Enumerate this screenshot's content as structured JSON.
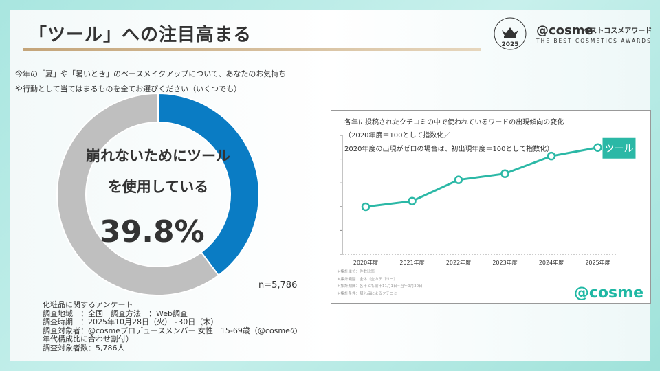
{
  "title": "「ツール」への注目高まる",
  "logo": {
    "brand": "@cosme",
    "brand_jp": "ベストコスメアワード",
    "sub": "THE BEST COSMETICS AWARDS",
    "year": "2025",
    "seal_text": "THE BEST COSMETICS AWARDS"
  },
  "question": "今年の「夏」や「暑いとき」のベースメイクアップについて、あなたのお気持ちや行動として当てはまるものを全てお選びください（いくつでも）",
  "donut": {
    "label_line1": "崩れないためにツール",
    "label_line2": "を使用している",
    "value_text": "39.8%",
    "value": 39.8,
    "colors": {
      "highlight": "#0a7cc4",
      "rest": "#bfbfbf"
    }
  },
  "n_text": "n=5,786",
  "survey": [
    "化粧品に関するアンケート",
    "調査地域　：全国　調査方法　：Web調査",
    "調査時期　：2025年10月28日（火）~30日（木）",
    "調査対象者：@cosmeプロデュースメンバー 女性　15-69歳（@cosmeの年代構成比に合わせ割付）",
    "調査対象者数：5,786人"
  ],
  "chart_data": {
    "type": "line",
    "title": "各年に投稿されたクチコミの中で使われているワードの出現傾向の変化",
    "subtitle_1": "（2020年度＝100として指数化／",
    "subtitle_2": "2020年度の出現がゼロの場合は、初出現年度＝100として指数化）",
    "categories": [
      "2020年度",
      "2021年度",
      "2022年度",
      "2023年度",
      "2024年度",
      "2025年度"
    ],
    "series": [
      {
        "name": "ツール",
        "values": [
          100,
          112,
          157,
          170,
          207,
          225
        ]
      }
    ],
    "color": "#2bb8a6",
    "grid": false
  },
  "chart_notes": [
    "＊集計単位：件数比率",
    "＊集計範囲：全体（全カテゴリー）",
    "＊集計期間：各年とも前年11月1日~当年9月30日",
    "＊集計条件：購入品によるクチコミ"
  ],
  "chart_logo": "@cosme"
}
